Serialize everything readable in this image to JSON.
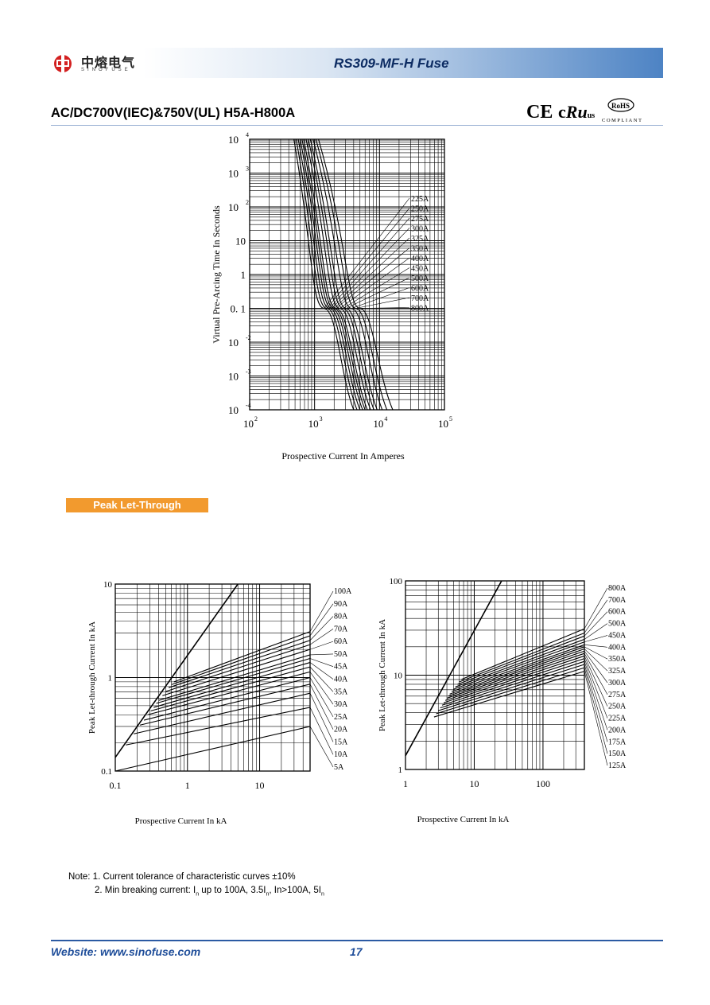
{
  "header": {
    "title": "RS309-MF-H Fuse",
    "logo_text": "中熔电气",
    "logo_sub": "SINOFUSE"
  },
  "subtitle": "AC/DC700V(IEC)&750V(UL) H5A-H800A",
  "certifications": [
    "CE",
    "cULus",
    "RoHS COMPLIANT"
  ],
  "section_label": "Peak Let-Through",
  "notes": {
    "line1": "Note: 1. Current tolerance of characteristic curves ±10%",
    "line2_prefix": "2. Min breaking current: I",
    "line2_a": "n",
    "line2_b": " up to 100A, 3.5I",
    "line2_c": "n",
    "line2_d": ", In>100A, 5I",
    "line2_e": "n"
  },
  "footer": {
    "website": "Website: www.sinofuse.com",
    "page": "17"
  },
  "chart_data": [
    {
      "type": "line",
      "xlabel": "Prospective Current In Amperes",
      "ylabel": "Virtual Pre-Arcing Time In Seconds",
      "x_ticks": [
        "10^2",
        "10^3",
        "10^4",
        "10^5"
      ],
      "y_ticks": [
        "10^-4",
        "10^-3",
        "10^-2",
        "0.1",
        "1",
        "10",
        "10^2",
        "10^3",
        "10^4"
      ],
      "x_scale": "log",
      "y_scale": "log",
      "xlim": [
        100,
        100000
      ],
      "ylim": [
        0.0001,
        10000
      ],
      "series": [
        {
          "name": "225A",
          "points": [
            [
              480,
              10000
            ],
            [
              900,
              10
            ],
            [
              1400,
              0.1
            ],
            [
              2500,
              0.001
            ],
            [
              4000,
              0.0001
            ]
          ]
        },
        {
          "name": "250A",
          "points": [
            [
              520,
              10000
            ],
            [
              1000,
              10
            ],
            [
              1550,
              0.1
            ],
            [
              2800,
              0.001
            ],
            [
              4500,
              0.0001
            ]
          ]
        },
        {
          "name": "275A",
          "points": [
            [
              560,
              10000
            ],
            [
              1100,
              10
            ],
            [
              1700,
              0.1
            ],
            [
              3100,
              0.001
            ],
            [
              5000,
              0.0001
            ]
          ]
        },
        {
          "name": "300A",
          "points": [
            [
              600,
              10000
            ],
            [
              1200,
              10
            ],
            [
              1850,
              0.1
            ],
            [
              3400,
              0.001
            ],
            [
              5500,
              0.0001
            ]
          ]
        },
        {
          "name": "325A",
          "points": [
            [
              640,
              10000
            ],
            [
              1300,
              10
            ],
            [
              2000,
              0.1
            ],
            [
              3700,
              0.001
            ],
            [
              6000,
              0.0001
            ]
          ]
        },
        {
          "name": "350A",
          "points": [
            [
              680,
              10000
            ],
            [
              1400,
              10
            ],
            [
              2150,
              0.1
            ],
            [
              4000,
              0.001
            ],
            [
              6500,
              0.0001
            ]
          ]
        },
        {
          "name": "400A",
          "points": [
            [
              740,
              10000
            ],
            [
              1600,
              10
            ],
            [
              2450,
              0.1
            ],
            [
              4500,
              0.001
            ],
            [
              7300,
              0.0001
            ]
          ]
        },
        {
          "name": "450A",
          "points": [
            [
              800,
              10000
            ],
            [
              1800,
              10
            ],
            [
              2750,
              0.1
            ],
            [
              5100,
              0.001
            ],
            [
              8200,
              0.0001
            ]
          ]
        },
        {
          "name": "500A",
          "points": [
            [
              860,
              10000
            ],
            [
              2000,
              10
            ],
            [
              3050,
              0.1
            ],
            [
              5700,
              0.001
            ],
            [
              9200,
              0.0001
            ]
          ]
        },
        {
          "name": "600A",
          "points": [
            [
              950,
              10000
            ],
            [
              2400,
              10
            ],
            [
              3700,
              0.1
            ],
            [
              6900,
              0.001
            ],
            [
              11000,
              0.0001
            ]
          ]
        },
        {
          "name": "700A",
          "points": [
            [
              1050,
              10000
            ],
            [
              2800,
              10
            ],
            [
              4300,
              0.1
            ],
            [
              8000,
              0.001
            ],
            [
              13000,
              0.0001
            ]
          ]
        },
        {
          "name": "800A",
          "points": [
            [
              1150,
              10000
            ],
            [
              3200,
              10
            ],
            [
              5000,
              0.1
            ],
            [
              9500,
              0.001
            ],
            [
              16000,
              0.0001
            ]
          ]
        }
      ]
    },
    {
      "type": "line",
      "xlabel": "Prospective Current In kA",
      "ylabel": "Peak Let-through Current In kA",
      "x_ticks": [
        "0.1",
        "1",
        "10"
      ],
      "y_ticks": [
        "0.1",
        "1",
        "10"
      ],
      "x_scale": "log",
      "y_scale": "log",
      "xlim": [
        0.1,
        50
      ],
      "ylim": [
        0.1,
        10
      ],
      "reference_line": [
        [
          0.1,
          0.14
        ],
        [
          5,
          10
        ]
      ],
      "series": [
        {
          "name": "100A",
          "values": [
            [
              0.65,
              0.9
            ],
            [
              50,
              3.1
            ]
          ]
        },
        {
          "name": "90A",
          "values": [
            [
              0.6,
              0.84
            ],
            [
              50,
              2.8
            ]
          ]
        },
        {
          "name": "80A",
          "values": [
            [
              0.55,
              0.78
            ],
            [
              50,
              2.5
            ]
          ]
        },
        {
          "name": "70A",
          "values": [
            [
              0.5,
              0.71
            ],
            [
              50,
              2.25
            ]
          ]
        },
        {
          "name": "60A",
          "values": [
            [
              0.45,
              0.64
            ],
            [
              50,
              2.0
            ]
          ]
        },
        {
          "name": "50A",
          "values": [
            [
              0.4,
              0.57
            ],
            [
              50,
              1.75
            ]
          ]
        },
        {
          "name": "45A",
          "values": [
            [
              0.37,
              0.53
            ],
            [
              50,
              1.6
            ]
          ]
        },
        {
          "name": "40A",
          "values": [
            [
              0.34,
              0.48
            ],
            [
              50,
              1.45
            ]
          ]
        },
        {
          "name": "35A",
          "values": [
            [
              0.31,
              0.44
            ],
            [
              50,
              1.3
            ]
          ]
        },
        {
          "name": "30A",
          "values": [
            [
              0.28,
              0.4
            ],
            [
              50,
              1.15
            ]
          ]
        },
        {
          "name": "25A",
          "values": [
            [
              0.25,
              0.35
            ],
            [
              50,
              1.0
            ]
          ]
        },
        {
          "name": "20A",
          "values": [
            [
              0.22,
              0.31
            ],
            [
              50,
              0.85
            ]
          ]
        },
        {
          "name": "15A",
          "values": [
            [
              0.18,
              0.25
            ],
            [
              50,
              0.68
            ]
          ]
        },
        {
          "name": "10A",
          "values": [
            [
              0.14,
              0.19
            ],
            [
              50,
              0.48
            ]
          ]
        },
        {
          "name": "5A",
          "values": [
            [
              0.1,
              0.1
            ],
            [
              50,
              0.3
            ]
          ]
        }
      ]
    },
    {
      "type": "line",
      "xlabel": "Prospective Current In kA",
      "ylabel": "Peak Let-through Current In kA",
      "x_ticks": [
        "1",
        "10",
        "100"
      ],
      "y_ticks": [
        "1",
        "10",
        "100"
      ],
      "x_scale": "log",
      "y_scale": "log",
      "xlim": [
        1,
        400
      ],
      "ylim": [
        1,
        100
      ],
      "reference_line": [
        [
          1,
          1.4
        ],
        [
          25,
          100
        ]
      ],
      "series": [
        {
          "name": "800A",
          "values": [
            [
              6.5,
              9
            ],
            [
              400,
              31
            ]
          ]
        },
        {
          "name": "700A",
          "values": [
            [
              6.1,
              8.5
            ],
            [
              400,
              28
            ]
          ]
        },
        {
          "name": "600A",
          "values": [
            [
              5.7,
              8
            ],
            [
              400,
              26
            ]
          ]
        },
        {
          "name": "500A",
          "values": [
            [
              5.3,
              7.5
            ],
            [
              400,
              24
            ]
          ]
        },
        {
          "name": "450A",
          "values": [
            [
              5.0,
              7.1
            ],
            [
              400,
              22.5
            ]
          ]
        },
        {
          "name": "400A",
          "values": [
            [
              4.7,
              6.7
            ],
            [
              400,
              21
            ]
          ]
        },
        {
          "name": "350A",
          "values": [
            [
              4.4,
              6.3
            ],
            [
              400,
              20
            ]
          ]
        },
        {
          "name": "325A",
          "values": [
            [
              4.2,
              6.0
            ],
            [
              400,
              19
            ]
          ]
        },
        {
          "name": "300A",
          "values": [
            [
              4.0,
              5.7
            ],
            [
              400,
              18
            ]
          ]
        },
        {
          "name": "275A",
          "values": [
            [
              3.8,
              5.4
            ],
            [
              400,
              17
            ]
          ]
        },
        {
          "name": "250A",
          "values": [
            [
              3.6,
              5.1
            ],
            [
              400,
              16
            ]
          ]
        },
        {
          "name": "225A",
          "values": [
            [
              3.4,
              4.8
            ],
            [
              400,
              15
            ]
          ]
        },
        {
          "name": "200A",
          "values": [
            [
              3.2,
              4.5
            ],
            [
              400,
              14
            ]
          ]
        },
        {
          "name": "175A",
          "values": [
            [
              3.0,
              4.2
            ],
            [
              400,
              13
            ]
          ]
        },
        {
          "name": "150A",
          "values": [
            [
              2.8,
              3.9
            ],
            [
              400,
              12
            ]
          ]
        },
        {
          "name": "125A",
          "values": [
            [
              2.6,
              3.6
            ],
            [
              400,
              11
            ]
          ]
        }
      ]
    }
  ]
}
